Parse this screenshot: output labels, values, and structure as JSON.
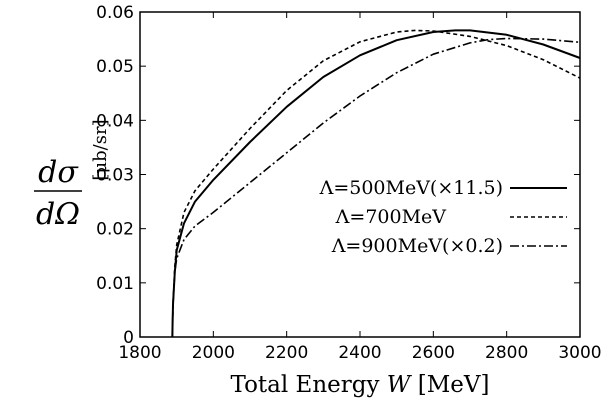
{
  "chart_data": {
    "type": "line",
    "xlabel_prefix": "Total Energy ",
    "xlabel_var": "W",
    "xlabel_suffix": " [MeV]",
    "ylabel_num": "dσ",
    "ylabel_den": "dΩ",
    "ylabel_unit": "[μb/sr]",
    "xlim": [
      1800,
      3000
    ],
    "ylim": [
      0,
      0.06
    ],
    "xticks": [
      "1800",
      "2000",
      "2200",
      "2400",
      "2600",
      "2800",
      "3000"
    ],
    "yticks": [
      "0",
      "0.01",
      "0.02",
      "0.03",
      "0.04",
      "0.05",
      "0.06"
    ],
    "legend_position": "center-right",
    "series": [
      {
        "name": "Λ=500MeV(×11.5)",
        "style": "solid",
        "x": [
          1888,
          1890,
          1895,
          1900,
          1920,
          1950,
          2000,
          2100,
          2200,
          2300,
          2400,
          2500,
          2600,
          2660,
          2700,
          2800,
          2900,
          3000
        ],
        "y": [
          0,
          0.006,
          0.012,
          0.016,
          0.021,
          0.025,
          0.029,
          0.036,
          0.0425,
          0.048,
          0.052,
          0.0548,
          0.0563,
          0.0566,
          0.0566,
          0.0558,
          0.054,
          0.0515
        ]
      },
      {
        "name": "Λ=700MeV",
        "style": "dashed",
        "x": [
          1888,
          1890,
          1895,
          1900,
          1920,
          1950,
          2000,
          2100,
          2200,
          2300,
          2400,
          2500,
          2550,
          2600,
          2700,
          2800,
          2900,
          3000
        ],
        "y": [
          0,
          0.006,
          0.013,
          0.017,
          0.023,
          0.027,
          0.031,
          0.0385,
          0.0455,
          0.051,
          0.0545,
          0.0563,
          0.0566,
          0.0565,
          0.0555,
          0.0538,
          0.0512,
          0.0478
        ]
      },
      {
        "name": "Λ=900MeV(×0.2)",
        "style": "dashdot",
        "x": [
          1888,
          1890,
          1895,
          1900,
          1920,
          1950,
          2000,
          2100,
          2200,
          2300,
          2400,
          2500,
          2600,
          2700,
          2750,
          2800,
          2900,
          3000
        ],
        "y": [
          0,
          0.006,
          0.012,
          0.0145,
          0.018,
          0.0205,
          0.023,
          0.0285,
          0.034,
          0.0395,
          0.0445,
          0.0488,
          0.0522,
          0.0543,
          0.0549,
          0.0551,
          0.055,
          0.0544
        ]
      }
    ]
  }
}
